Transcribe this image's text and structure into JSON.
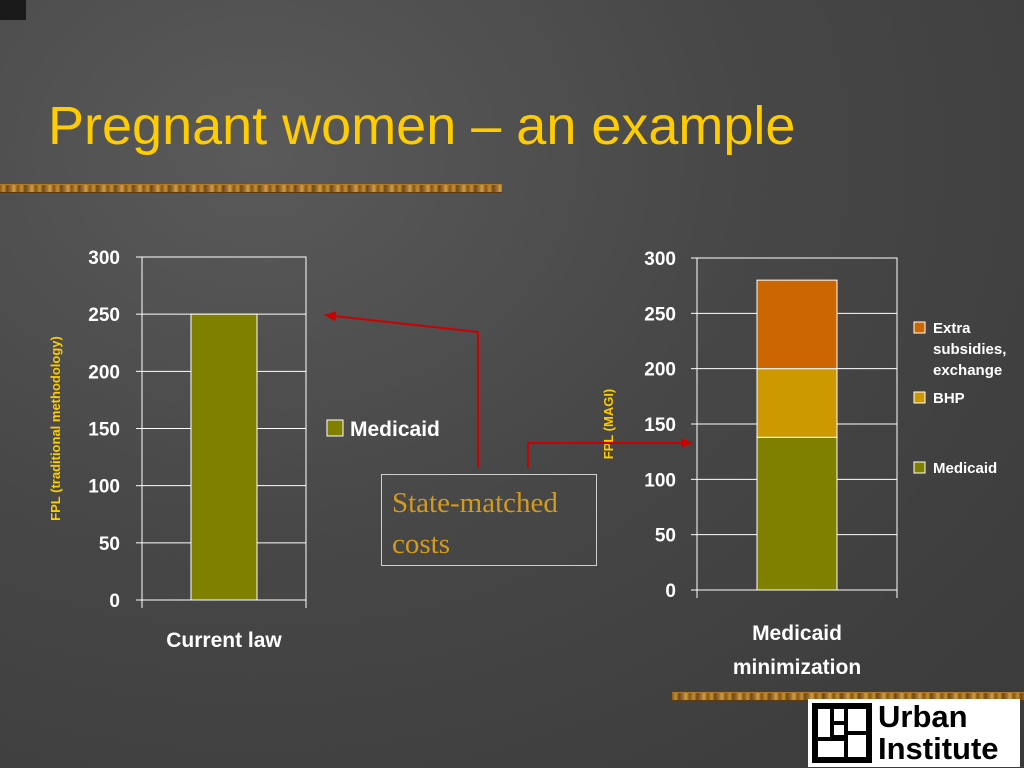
{
  "slide": {
    "title": "Pregnant women – an example",
    "callout_text": "State-matched costs"
  },
  "logo": {
    "line1": "Urban",
    "line2": "Institute"
  },
  "colors": {
    "title": "#ffcc00",
    "medicaid": "#808000",
    "bhp": "#cc9900",
    "extra_subsidies": "#cc6600",
    "arrow": "#cc0000",
    "callout_text": "#d49a1e"
  },
  "chart_data": [
    {
      "type": "bar",
      "categories": [
        "Current law"
      ],
      "series": [
        {
          "name": "Medicaid",
          "values": [
            250
          ]
        }
      ],
      "ylabel": "FPL (traditional methodology)",
      "ylim": [
        0,
        300
      ],
      "yticks": [
        0,
        50,
        100,
        150,
        200,
        250,
        300
      ],
      "grid": true,
      "legend": "right"
    },
    {
      "type": "bar",
      "stacked": true,
      "categories": [
        "Medicaid minimization"
      ],
      "series": [
        {
          "name": "Medicaid",
          "values": [
            138
          ]
        },
        {
          "name": "BHP",
          "values": [
            62
          ]
        },
        {
          "name": "Extra subsidies, exchange",
          "values": [
            80
          ]
        }
      ],
      "ylabel": "FPL (MAGI)",
      "ylim": [
        0,
        300
      ],
      "yticks": [
        0,
        50,
        100,
        150,
        200,
        250,
        300
      ],
      "grid": true,
      "legend": "right"
    }
  ]
}
